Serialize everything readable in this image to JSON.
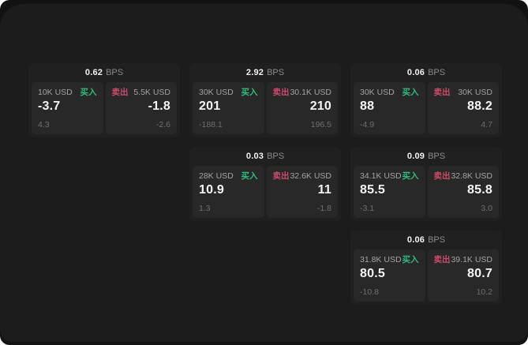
{
  "labels": {
    "bps": "BPS",
    "buy": "买入",
    "sell": "卖出"
  },
  "colors": {
    "backdrop": "#121212",
    "panel_background": "#1c1c1c",
    "card_background": "#202020",
    "tile_background": "#282828",
    "buy_green": "#2fbd7f",
    "sell_red": "#cd4a6c",
    "primary_text": "#f5f5f5",
    "muted_text": "#8a8a8a"
  },
  "cards": [
    {
      "spread": "0.62",
      "buy": {
        "size": "10K USD",
        "price": "-3.7",
        "delta": "4.3"
      },
      "sell": {
        "size": "5.5K USD",
        "price": "-1.8",
        "delta": "-2.6"
      }
    },
    {
      "spread": "2.92",
      "buy": {
        "size": "30K USD",
        "price": "201",
        "delta": "-188.1"
      },
      "sell": {
        "size": "30.1K USD",
        "price": "210",
        "delta": "196.5"
      }
    },
    {
      "spread": "0.06",
      "buy": {
        "size": "30K USD",
        "price": "88",
        "delta": "-4.9"
      },
      "sell": {
        "size": "30K USD",
        "price": "88.2",
        "delta": "4.7"
      }
    },
    {
      "spread": "0.03",
      "buy": {
        "size": "28K USD",
        "price": "10.9",
        "delta": "1.3"
      },
      "sell": {
        "size": "32.6K USD",
        "price": "11",
        "delta": "-1.8"
      }
    },
    {
      "spread": "0.09",
      "buy": {
        "size": "34.1K USD",
        "price": "85.5",
        "delta": "-3.1"
      },
      "sell": {
        "size": "32.8K USD",
        "price": "85.8",
        "delta": "3.0"
      }
    },
    {
      "spread": "0.06",
      "buy": {
        "size": "31.8K USD",
        "price": "80.5",
        "delta": "-10.8"
      },
      "sell": {
        "size": "39.1K USD",
        "price": "80.7",
        "delta": "10.2"
      }
    }
  ]
}
